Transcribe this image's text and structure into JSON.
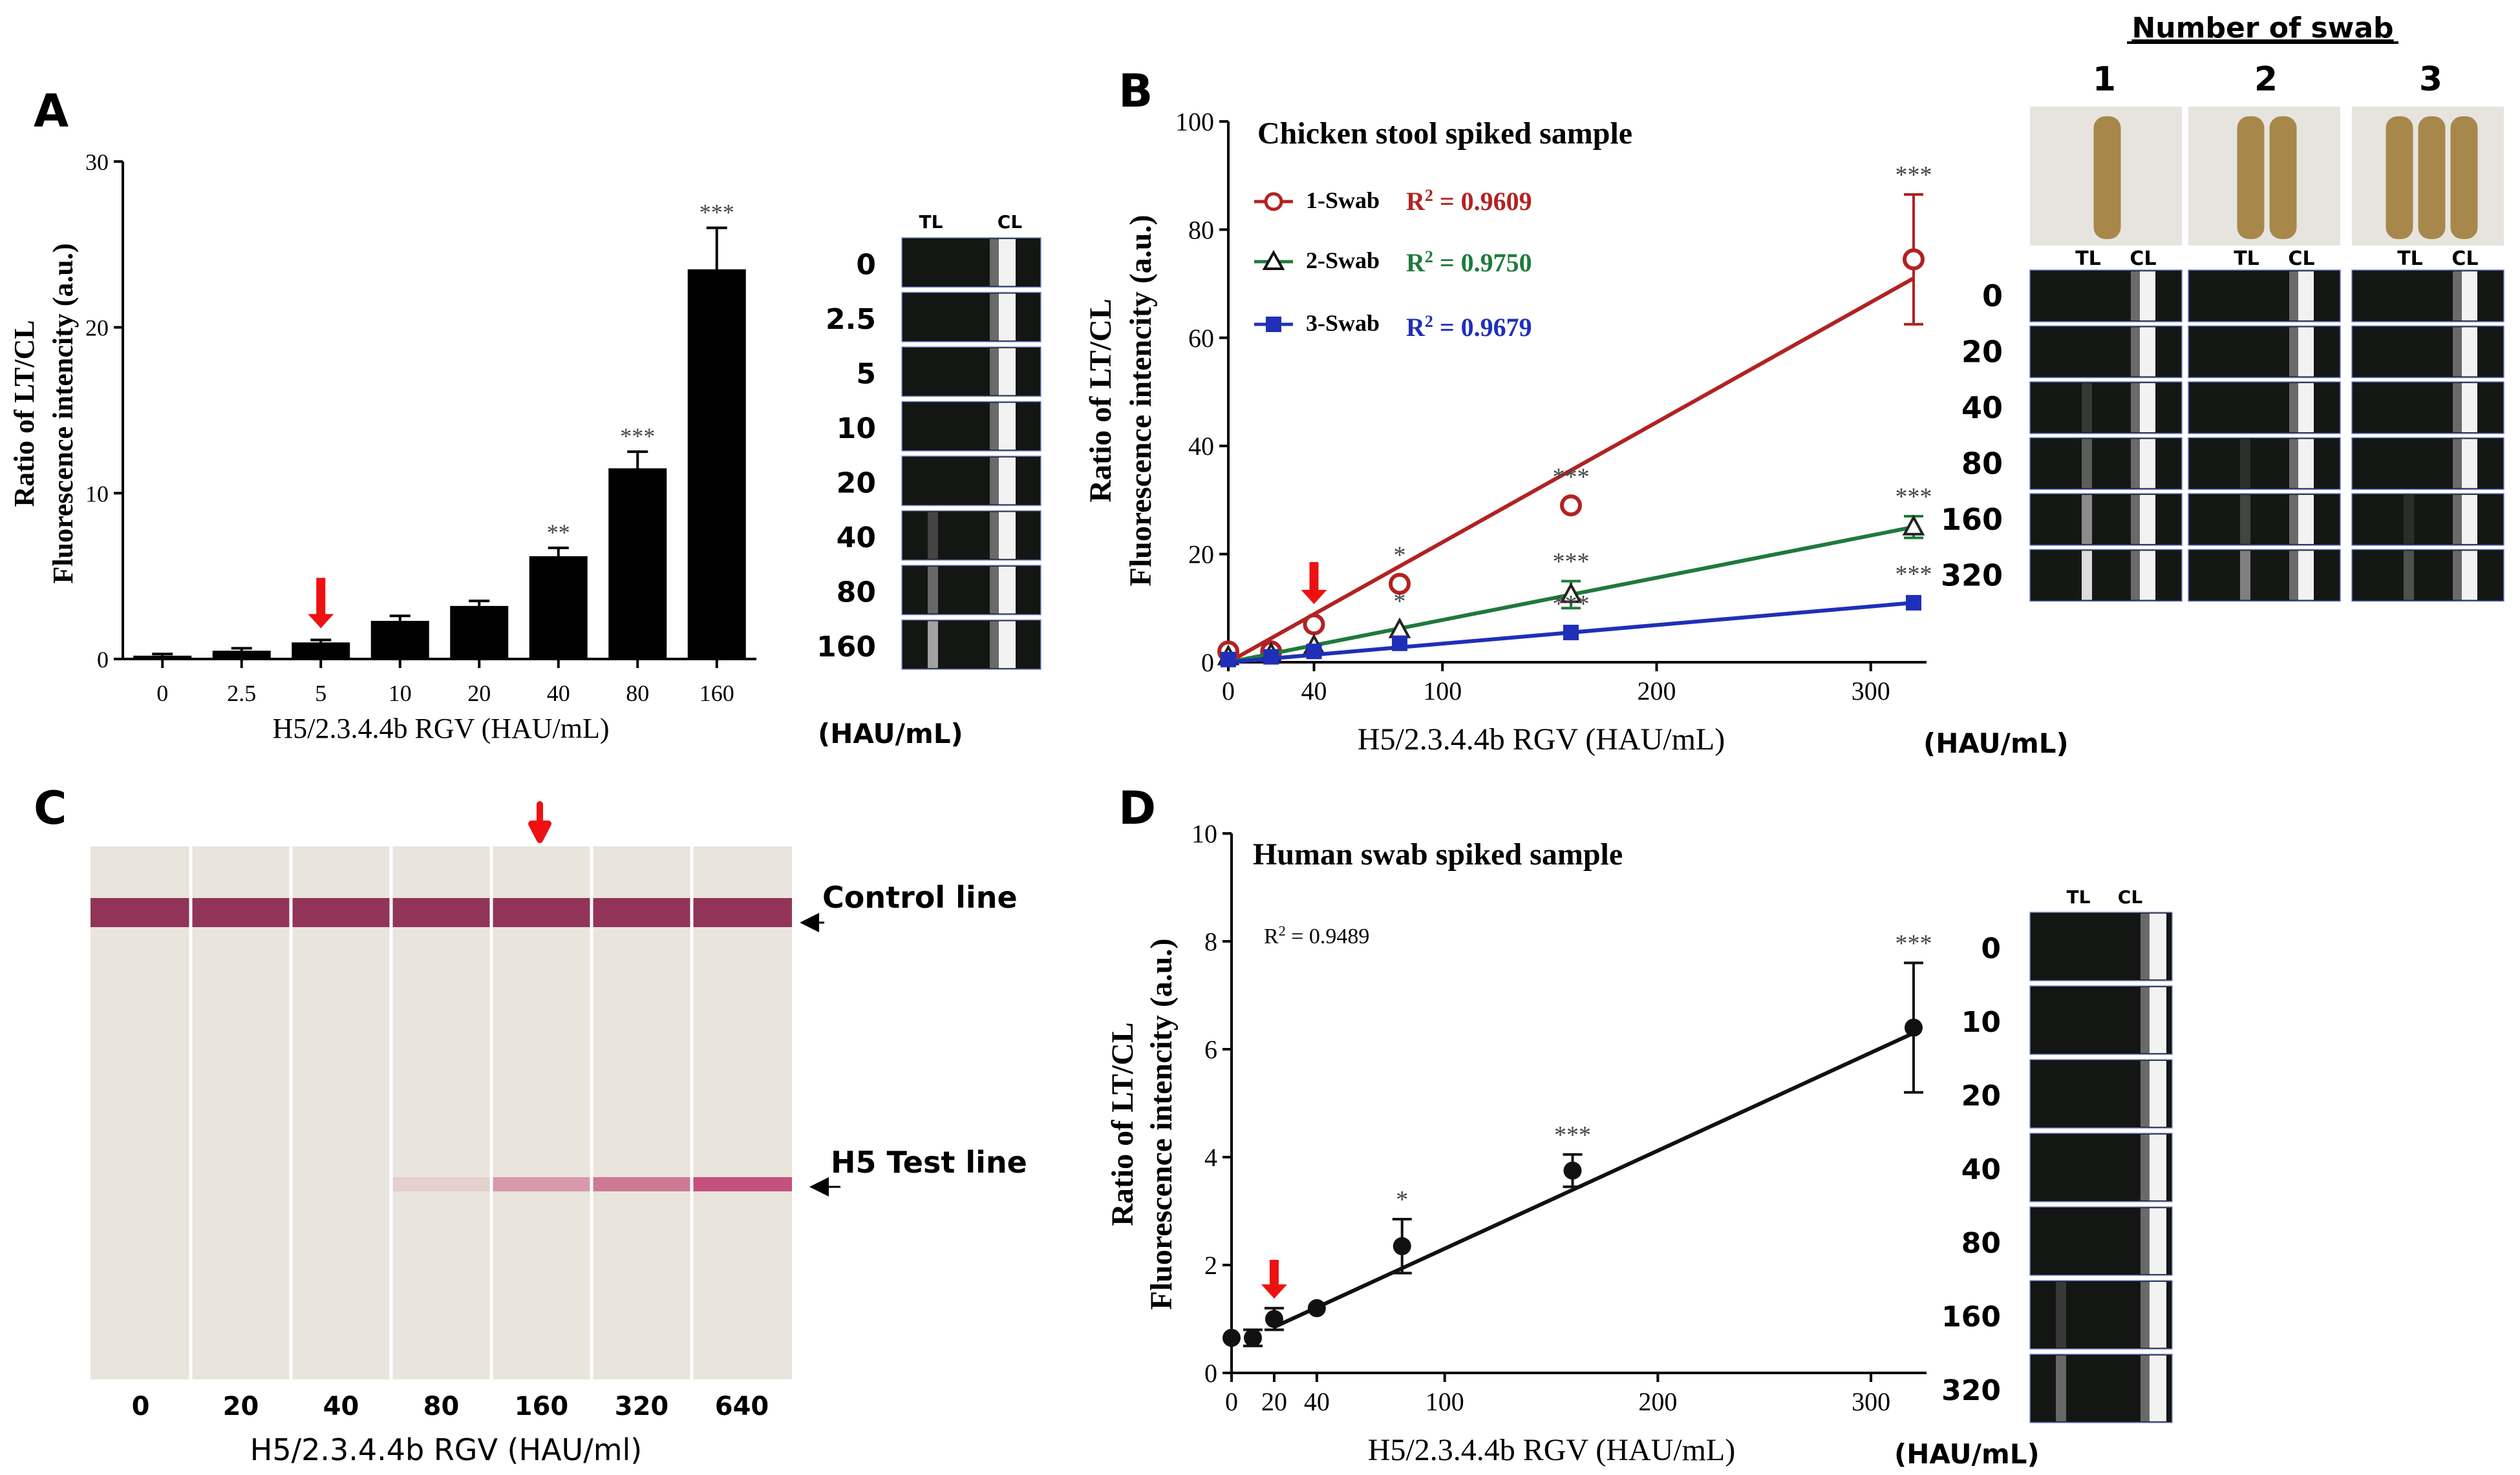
{
  "colors": {
    "red": "#b22222",
    "green": "#1e7a3c",
    "blue": "#1f2fb8",
    "arrow": "#ee1111",
    "band": "#8c2a50",
    "strip_bg": "#e9e4dc"
  },
  "panels": {
    "A": {
      "label": "A",
      "strip_header": {
        "tl": "TL",
        "cl": "CL"
      },
      "strip_rows": [
        "0",
        "2.5",
        "5",
        "10",
        "20",
        "40",
        "80",
        "160"
      ],
      "unit": "(HAU/mL)"
    },
    "B": {
      "label": "B",
      "legend_title": "Chicken stool spiked sample",
      "legend": [
        {
          "name": "1-Swab",
          "r2_prefix": "R",
          "r2_sup": "2",
          "r2_value": " = 0.9609"
        },
        {
          "name": "2-Swab",
          "r2_prefix": "R",
          "r2_sup": "2",
          "r2_value": " = 0.9750"
        },
        {
          "name": "3-Swab",
          "r2_prefix": "R",
          "r2_sup": "2",
          "r2_value": " = 0.9679"
        }
      ],
      "swab_title": "Number of swab",
      "swab_numbers": [
        "1",
        "2",
        "3"
      ],
      "strip_header": {
        "tl": "TL",
        "cl": "CL"
      },
      "strip_rows": [
        "0",
        "20",
        "40",
        "80",
        "160",
        "320"
      ],
      "unit": "(HAU/mL)"
    },
    "C": {
      "label": "C",
      "control_line": "Control line",
      "test_line": "H5 Test line",
      "lanes": [
        "0",
        "20",
        "40",
        "80",
        "160",
        "320",
        "640"
      ],
      "test_intensity": [
        0,
        0,
        0,
        0.12,
        0.45,
        0.65,
        0.9
      ],
      "xlabel": "H5/2.3.4.4b RGV (HAU/ml)"
    },
    "D": {
      "label": "D",
      "legend_title": "Human swab spiked sample",
      "r2_prefix": "R",
      "r2_sup": "2",
      "r2_value": " = 0.9489",
      "strip_header": {
        "tl": "TL",
        "cl": "CL"
      },
      "strip_rows": [
        "0",
        "10",
        "20",
        "40",
        "80",
        "160",
        "320"
      ],
      "unit": "(HAU/mL)"
    }
  },
  "chart_data": [
    {
      "id": "A",
      "type": "bar",
      "categories": [
        "0",
        "2.5",
        "5",
        "10",
        "20",
        "40",
        "80",
        "160"
      ],
      "values": [
        0.2,
        0.5,
        1.0,
        2.3,
        3.2,
        6.2,
        11.5,
        23.5
      ],
      "errors": [
        0.1,
        0.15,
        0.15,
        0.3,
        0.3,
        0.5,
        1.0,
        2.5
      ],
      "significance": [
        "",
        "",
        "",
        "",
        "",
        "**",
        "***",
        "***"
      ],
      "arrow_at": "5",
      "ylim": [
        0,
        30
      ],
      "yticks": [
        0,
        10,
        20,
        30
      ],
      "xlabel": "H5/2.3.4.4b RGV (HAU/mL)",
      "ylabel_line1": "Ratio of LT/CL",
      "ylabel_line2": "Fluorescence intencity (a.u.)"
    },
    {
      "id": "B",
      "type": "line",
      "xlim": [
        0,
        320
      ],
      "ylim": [
        0,
        100
      ],
      "xticks": [
        0,
        40,
        100,
        200,
        300
      ],
      "yticks": [
        0,
        20,
        40,
        60,
        80,
        100
      ],
      "arrow_at": 40,
      "xlabel": "H5/2.3.4.4b RGV (HAU/mL)",
      "ylabel_line1": "Ratio of LT/CL",
      "ylabel_line2": "Fluorescence intencity (a.u.)",
      "series": [
        {
          "name": "1-Swab",
          "marker": "circle",
          "x": [
            0,
            20,
            40,
            80,
            160,
            320
          ],
          "y": [
            2,
            2,
            7,
            14.5,
            29,
            74.5
          ],
          "errors": [
            0,
            0,
            0,
            0,
            0,
            12
          ],
          "fit": [
            [
              0,
              0
            ],
            [
              320,
              71
            ]
          ],
          "significance": [
            "",
            "",
            "",
            "*",
            "***",
            "***"
          ]
        },
        {
          "name": "2-Swab",
          "marker": "triangle",
          "x": [
            0,
            20,
            40,
            80,
            160,
            320
          ],
          "y": [
            1,
            1.5,
            3,
            6,
            12.5,
            25
          ],
          "errors": [
            0,
            0,
            0,
            0,
            2.5,
            2
          ],
          "fit": [
            [
              0,
              0
            ],
            [
              320,
              25
            ]
          ],
          "significance": [
            "",
            "",
            "",
            "*",
            "***",
            "***"
          ]
        },
        {
          "name": "3-Swab",
          "marker": "square",
          "x": [
            0,
            20,
            40,
            80,
            160,
            320
          ],
          "y": [
            0.5,
            1,
            2,
            3.5,
            5.5,
            11
          ],
          "errors": [
            0,
            0,
            0,
            0,
            0,
            0
          ],
          "fit": [
            [
              0,
              0
            ],
            [
              320,
              11
            ]
          ],
          "significance": [
            "",
            "",
            "",
            "",
            "***",
            "***"
          ]
        }
      ]
    },
    {
      "id": "D",
      "type": "line",
      "xlim": [
        0,
        320
      ],
      "ylim": [
        0,
        10
      ],
      "xticks": [
        0,
        20,
        40,
        100,
        200,
        300
      ],
      "yticks": [
        0,
        2,
        4,
        6,
        8,
        10
      ],
      "arrow_at": 20,
      "xlabel": "H5/2.3.4.4b RGV (HAU/mL)",
      "ylabel_line1": "Ratio of LT/CL",
      "ylabel_line2": "Fluorescence intencity (a.u.)",
      "series": [
        {
          "name": "Human swab",
          "marker": "filled-circle",
          "x": [
            0,
            10,
            20,
            40,
            80,
            160,
            320
          ],
          "y": [
            0.65,
            0.65,
            1.0,
            1.2,
            2.35,
            3.75,
            6.4
          ],
          "errors": [
            0,
            0.15,
            0.2,
            0,
            0.5,
            0.3,
            1.2
          ],
          "fit": [
            [
              20,
              0.85
            ],
            [
              320,
              6.3
            ]
          ],
          "significance": [
            "",
            "",
            "",
            "",
            "*",
            "***",
            "***"
          ]
        }
      ]
    }
  ]
}
